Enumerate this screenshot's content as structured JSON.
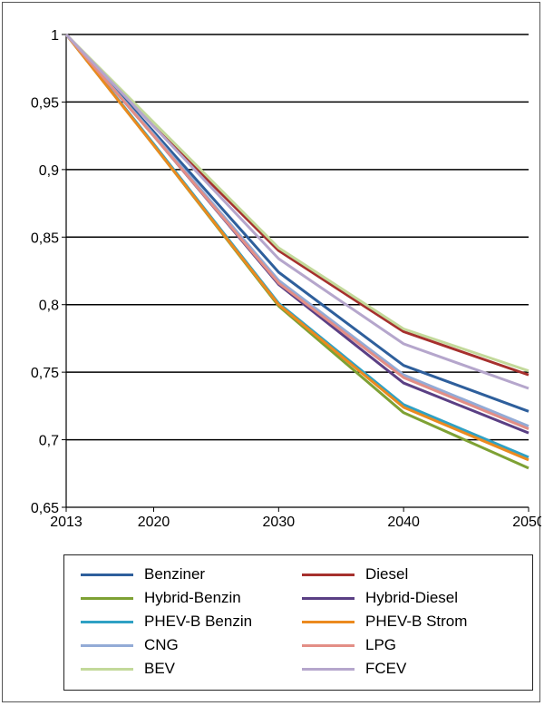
{
  "chart_data": {
    "type": "line",
    "categories": [
      "2013",
      "2020",
      "2030",
      "2040",
      "2050"
    ],
    "x": [
      2013,
      2020,
      2030,
      2040,
      2050
    ],
    "ylim": [
      0.65,
      1
    ],
    "yticks": [
      "0,65",
      "0,7",
      "0,75",
      "0,8",
      "0,85",
      "0,9",
      "0,95",
      "1"
    ],
    "ytick_values": [
      0.65,
      0.7,
      0.75,
      0.8,
      0.85,
      0.9,
      0.95,
      1.0
    ],
    "grid": true,
    "legend_position": "bottom",
    "series": [
      {
        "name": "Benziner",
        "color": "#2e5f9c",
        "values": [
          1,
          0.928,
          0.824,
          0.755,
          0.721
        ]
      },
      {
        "name": "Diesel",
        "color": "#a6302d",
        "values": [
          1,
          0.932,
          0.84,
          0.78,
          0.748
        ]
      },
      {
        "name": "Hybrid-Benzin",
        "color": "#7ea134",
        "values": [
          1,
          0.918,
          0.799,
          0.72,
          0.679
        ]
      },
      {
        "name": "Hybrid-Diesel",
        "color": "#5a3f84",
        "values": [
          1,
          0.925,
          0.815,
          0.742,
          0.705
        ]
      },
      {
        "name": "PHEV-B Benzin",
        "color": "#2fa1c4",
        "values": [
          1,
          0.919,
          0.801,
          0.726,
          0.687
        ]
      },
      {
        "name": "PHEV-B Strom",
        "color": "#eb8a1f",
        "values": [
          1,
          0.918,
          0.8,
          0.724,
          0.685
        ]
      },
      {
        "name": "CNG",
        "color": "#93abd6",
        "values": [
          1,
          0.926,
          0.818,
          0.748,
          0.71
        ]
      },
      {
        "name": "LPG",
        "color": "#e38e86",
        "values": [
          1,
          0.925,
          0.816,
          0.746,
          0.708
        ]
      },
      {
        "name": "BEV",
        "color": "#c3d99a",
        "values": [
          1,
          0.935,
          0.842,
          0.782,
          0.751
        ]
      },
      {
        "name": "FCEV",
        "color": "#b5a6cc",
        "values": [
          1,
          0.932,
          0.834,
          0.771,
          0.738
        ]
      }
    ]
  }
}
